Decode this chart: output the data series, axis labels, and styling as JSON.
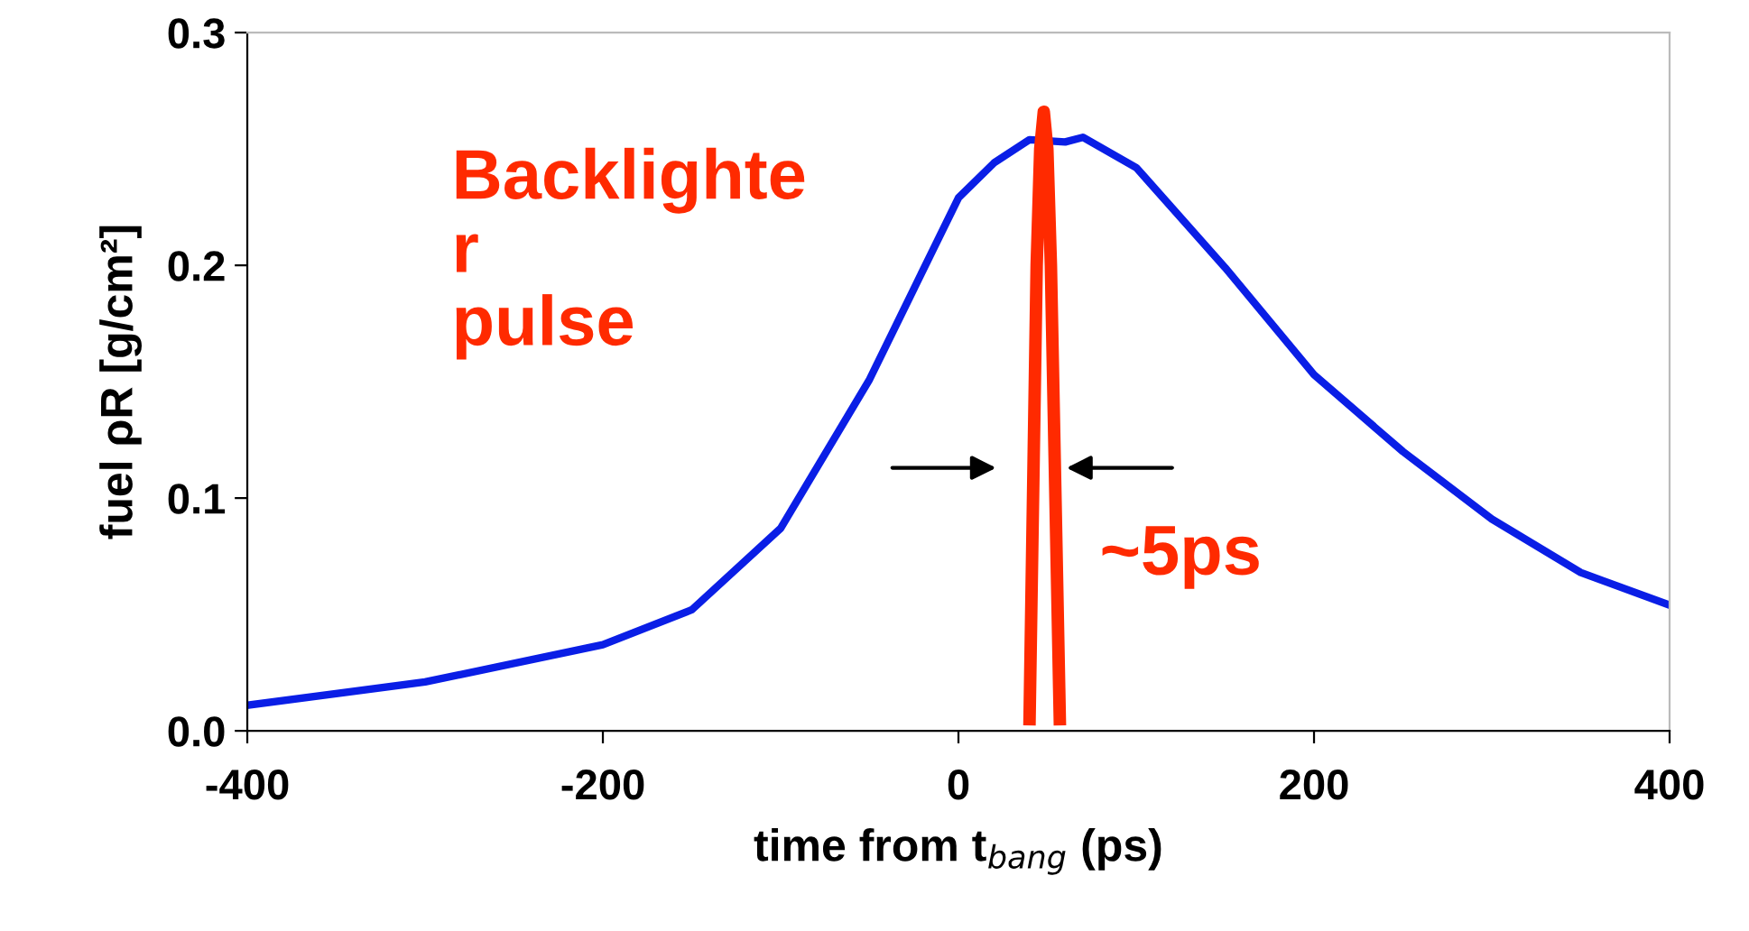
{
  "chart_data": {
    "type": "line",
    "xlabel": "time from t$_{bang}$ (ps)",
    "ylabel": "fuel ρR [g/cm²]",
    "xlim": [
      -400,
      400
    ],
    "xticks": [
      -400,
      -200,
      0,
      200,
      400
    ],
    "ylim": [
      0,
      0.3
    ],
    "yticks": [
      {
        "value": 0,
        "label": "0.0"
      },
      {
        "value": 0.1,
        "label": "0.1"
      },
      {
        "value": 0.2,
        "label": "0.2"
      },
      {
        "value": 0.3,
        "label": "0.3"
      }
    ],
    "grid": false,
    "legend": false,
    "marker": "none",
    "line_style": "solid",
    "series": [
      {
        "color": "#0a1ee6",
        "x": [
          -400,
          -300,
          -200,
          -150,
          -100,
          -50,
          0,
          20,
          40,
          60,
          70,
          100,
          150,
          200,
          250,
          300,
          350,
          400
        ],
        "values": [
          0.011,
          0.021,
          0.037,
          0.052,
          0.087,
          0.151,
          0.229,
          0.244,
          0.254,
          0.253,
          0.255,
          0.242,
          0.199,
          0.153,
          0.12,
          0.091,
          0.068,
          0.054
        ]
      },
      {
        "color": "#ff2a00",
        "x": [
          40,
          44,
          46,
          48,
          50,
          52,
          57
        ],
        "values": [
          0.005,
          0.2,
          0.25,
          0.266,
          0.25,
          0.2,
          0.005
        ]
      }
    ],
    "annotations": [
      "Backlighte\nr\npulse",
      "~5ps"
    ]
  }
}
